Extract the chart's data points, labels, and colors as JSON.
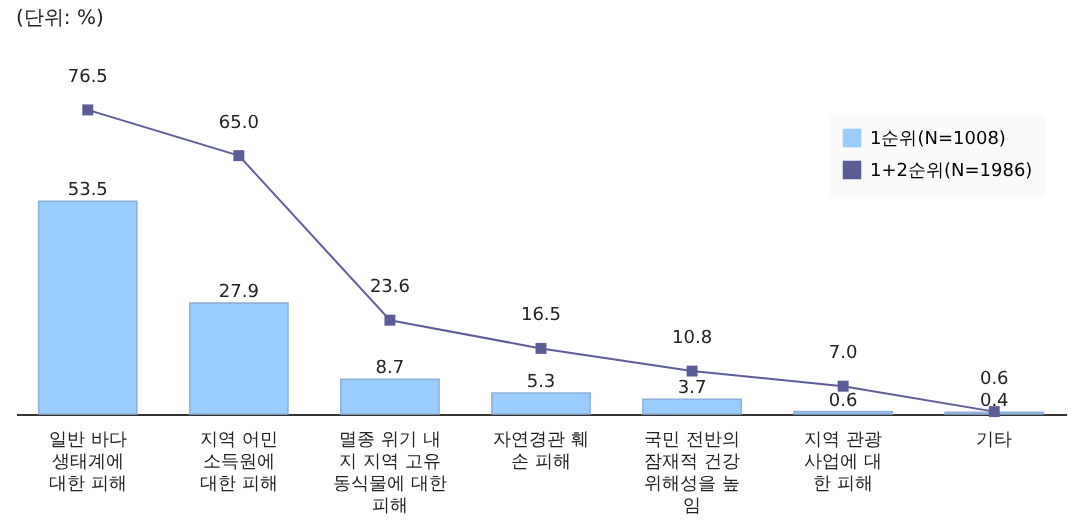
{
  "chart_data": {
    "type": "bar",
    "annotations": [
      "(단위: %)"
    ],
    "categories": [
      "일반 바다\n생태계에\n대한 피해",
      "지역 어민\n소득원에\n대한 피해",
      "멸종 위기 내\n지 지역 고유\n동식물에 대한\n피해",
      "자연경관 훼\n손 피해",
      "국민 전반의\n잠재적 건강\n위해성을 높\n임",
      "지역 관광\n사업에 대\n한 피해",
      "기타"
    ],
    "series": [
      {
        "name": "1순위(N=1008)",
        "color": "#99ccff",
        "values": [
          53.5,
          27.9,
          8.7,
          5.3,
          3.7,
          0.6,
          0.4
        ],
        "value_labels": [
          "53.5",
          "27.9",
          "8.7",
          "5.3",
          "3.7",
          "0.6",
          "0.4"
        ]
      },
      {
        "name": "1+2순위(N=1986)",
        "type": "line",
        "color": "#5c5c99",
        "values": [
          76.5,
          65.0,
          23.6,
          16.5,
          10.8,
          7.0,
          0.6
        ],
        "value_labels": [
          "76.5",
          "65.0",
          "23.6",
          "16.5",
          "10.8",
          "7.0",
          "0.6"
        ]
      }
    ],
    "legend": "top right",
    "marker": "square"
  }
}
